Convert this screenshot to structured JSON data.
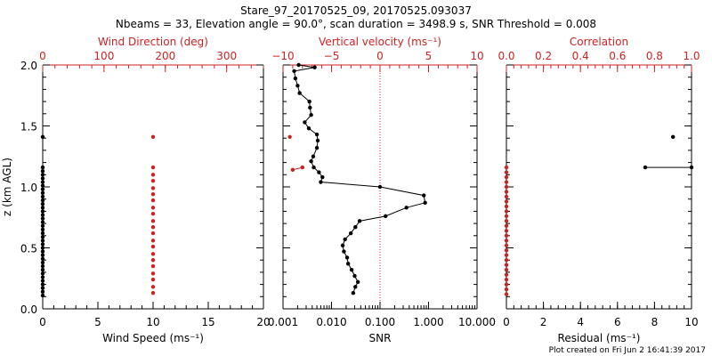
{
  "title": {
    "line1": "Stare_97_20170525_09, 20170525.093037",
    "line2": "Nbeams = 33, Elevation angle = 90.0°, scan duration = 3498.9 s, SNR Threshold = 0.008"
  },
  "footer": "Plot created on Fri Jun  2 16:41:39 2017",
  "colors": {
    "axis": "#000000",
    "red": "#cc2222"
  },
  "chart_data": [
    {
      "type": "scatter",
      "id": "wind-panel",
      "ylabel": "z (km AGL)",
      "ylim": [
        0,
        2.0
      ],
      "yticks": [
        0.0,
        0.5,
        1.0,
        1.5,
        2.0
      ],
      "ytick_labels": [
        "0.0",
        "0.5",
        "1.0",
        "1.5",
        "2.0"
      ],
      "bottom_axis": {
        "label": "Wind Speed (ms⁻¹)",
        "range": [
          0,
          20
        ],
        "ticks": [
          0,
          5,
          10,
          15,
          20
        ],
        "tick_labels": [
          "0",
          "5",
          "10",
          "15",
          "20"
        ]
      },
      "top_axis": {
        "label": "Wind Direction (deg)",
        "range": [
          0,
          360
        ],
        "ticks": [
          0,
          100,
          200,
          300
        ],
        "tick_labels": [
          "0",
          "100",
          "200",
          "300"
        ]
      },
      "series": [
        {
          "name": "Wind Speed",
          "color": "#000000",
          "axis": "bottom",
          "points": [
            [
              0,
              0.11
            ],
            [
              0,
              0.14
            ],
            [
              0,
              0.17
            ],
            [
              0,
              0.2
            ],
            [
              0,
              0.23
            ],
            [
              0,
              0.26
            ],
            [
              0,
              0.29
            ],
            [
              0,
              0.32
            ],
            [
              0,
              0.35
            ],
            [
              0,
              0.38
            ],
            [
              0,
              0.41
            ],
            [
              0,
              0.44
            ],
            [
              0,
              0.47
            ],
            [
              0,
              0.5
            ],
            [
              0,
              0.53
            ],
            [
              0,
              0.56
            ],
            [
              0,
              0.59
            ],
            [
              0,
              0.62
            ],
            [
              0,
              0.65
            ],
            [
              0,
              0.68
            ],
            [
              0,
              0.71
            ],
            [
              0,
              0.74
            ],
            [
              0,
              0.77
            ],
            [
              0,
              0.8
            ],
            [
              0,
              0.83
            ],
            [
              0,
              0.86
            ],
            [
              0,
              0.89
            ],
            [
              0,
              0.92
            ],
            [
              0,
              0.95
            ],
            [
              0,
              0.98
            ],
            [
              0,
              1.01
            ],
            [
              0,
              1.04
            ],
            [
              0,
              1.07
            ],
            [
              0,
              1.1
            ],
            [
              0,
              1.13
            ],
            [
              0,
              1.16
            ],
            [
              0,
              1.41
            ]
          ]
        },
        {
          "name": "Wind Direction",
          "color": "#cc2222",
          "axis": "top",
          "points": [
            [
              180,
              0.13
            ],
            [
              180,
              0.18
            ],
            [
              180,
              0.24
            ],
            [
              180,
              0.29
            ],
            [
              180,
              0.35
            ],
            [
              180,
              0.4
            ],
            [
              180,
              0.45
            ],
            [
              180,
              0.51
            ],
            [
              180,
              0.56
            ],
            [
              180,
              0.62
            ],
            [
              180,
              0.67
            ],
            [
              180,
              0.72
            ],
            [
              180,
              0.78
            ],
            [
              180,
              0.83
            ],
            [
              180,
              0.89
            ],
            [
              180,
              0.94
            ],
            [
              180,
              0.99
            ],
            [
              180,
              1.05
            ],
            [
              180,
              1.1
            ],
            [
              180,
              1.16
            ],
            [
              180,
              1.41
            ]
          ]
        }
      ]
    },
    {
      "type": "line",
      "id": "vv-panel",
      "ylim": [
        0,
        2.0
      ],
      "yticks": [
        0.0,
        0.5,
        1.0,
        1.5,
        2.0
      ],
      "bottom_axis": {
        "label": "SNR",
        "scale": "log",
        "range": [
          0.001,
          10
        ],
        "ticks": [
          0.001,
          0.01,
          0.1,
          1,
          10
        ],
        "tick_labels": [
          "0.001",
          "0.010",
          "0.100",
          "1.000",
          "10.000"
        ]
      },
      "top_axis": {
        "label": "Vertical velocity (ms⁻¹)",
        "range": [
          -10,
          10
        ],
        "ticks": [
          -10,
          -5,
          0,
          5,
          10
        ],
        "tick_labels": [
          "−10",
          "−5",
          "0",
          "5",
          "10"
        ]
      },
      "series": [
        {
          "name": "SNR",
          "color": "#000000",
          "axis": "bottom",
          "points": [
            [
              0.028,
              0.13
            ],
            [
              0.031,
              0.18
            ],
            [
              0.035,
              0.22
            ],
            [
              0.03,
              0.27
            ],
            [
              0.026,
              0.32
            ],
            [
              0.022,
              0.37
            ],
            [
              0.021,
              0.42
            ],
            [
              0.018,
              0.47
            ],
            [
              0.017,
              0.52
            ],
            [
              0.019,
              0.57
            ],
            [
              0.025,
              0.62
            ],
            [
              0.031,
              0.67
            ],
            [
              0.038,
              0.72
            ],
            [
              0.13,
              0.76
            ],
            [
              0.35,
              0.83
            ],
            [
              0.85,
              0.87
            ],
            [
              0.8,
              0.93
            ],
            [
              0.1,
              1.0
            ],
            [
              0.006,
              1.04
            ],
            [
              0.0065,
              1.08
            ],
            [
              0.0055,
              1.12
            ],
            [
              0.0043,
              1.16
            ],
            [
              0.0038,
              1.21
            ],
            [
              0.0042,
              1.25
            ],
            [
              0.005,
              1.32
            ],
            [
              0.0052,
              1.38
            ],
            [
              0.005,
              1.43
            ],
            [
              0.0034,
              1.48
            ],
            [
              0.0028,
              1.53
            ],
            [
              0.0038,
              1.59
            ],
            [
              0.0036,
              1.65
            ],
            [
              0.0035,
              1.7
            ],
            [
              0.0022,
              1.77
            ],
            [
              0.002,
              1.83
            ],
            [
              0.0018,
              1.89
            ],
            [
              0.0017,
              1.95
            ],
            [
              0.0045,
              1.98
            ],
            [
              0.0021,
              2.0
            ]
          ]
        },
        {
          "name": "Vertical velocity",
          "color": "#cc2222",
          "axis": "top",
          "points": [
            [
              -9.3,
              1.41
            ],
            [
              -8.0,
              1.16
            ],
            [
              -9.0,
              1.14
            ]
          ]
        }
      ],
      "reference_line": {
        "axis": "top",
        "value": 0,
        "style": "dotted",
        "color": "#cc2222"
      }
    },
    {
      "type": "scatter",
      "id": "corr-panel",
      "ylim": [
        0,
        2.0
      ],
      "yticks": [
        0.0,
        0.5,
        1.0,
        1.5,
        2.0
      ],
      "bottom_axis": {
        "label": "Residual (ms⁻¹)",
        "range": [
          0,
          10
        ],
        "ticks": [
          0,
          2,
          4,
          6,
          8,
          10
        ],
        "tick_labels": [
          "0",
          "2",
          "4",
          "6",
          "8",
          "10"
        ]
      },
      "top_axis": {
        "label": "Correlation",
        "range": [
          0,
          1.0
        ],
        "ticks": [
          0,
          0.2,
          0.4,
          0.6,
          0.8,
          1.0
        ],
        "tick_labels": [
          "0.0",
          "0.2",
          "0.4",
          "0.6",
          "0.8",
          "1.0"
        ]
      },
      "series": [
        {
          "name": "Residual",
          "color": "#000000",
          "axis": "bottom",
          "points": [
            [
              9.0,
              1.41
            ],
            [
              7.5,
              1.16
            ],
            [
              10.0,
              1.16
            ]
          ]
        },
        {
          "name": "Correlation",
          "color": "#cc2222",
          "axis": "top",
          "points": [
            [
              0,
              0.12
            ],
            [
              0,
              0.16
            ],
            [
              0,
              0.2
            ],
            [
              0,
              0.24
            ],
            [
              0,
              0.28
            ],
            [
              0,
              0.32
            ],
            [
              0,
              0.36
            ],
            [
              0,
              0.4
            ],
            [
              0,
              0.44
            ],
            [
              0,
              0.48
            ],
            [
              0,
              0.52
            ],
            [
              0,
              0.56
            ],
            [
              0,
              0.6
            ],
            [
              0,
              0.64
            ],
            [
              0,
              0.68
            ],
            [
              0,
              0.72
            ],
            [
              0,
              0.76
            ],
            [
              0,
              0.8
            ],
            [
              0,
              0.84
            ],
            [
              0,
              0.88
            ],
            [
              0,
              0.92
            ],
            [
              0,
              0.96
            ],
            [
              0,
              1.0
            ],
            [
              0,
              1.04
            ],
            [
              0,
              1.08
            ],
            [
              0,
              1.12
            ],
            [
              0,
              1.16
            ]
          ]
        }
      ]
    }
  ]
}
